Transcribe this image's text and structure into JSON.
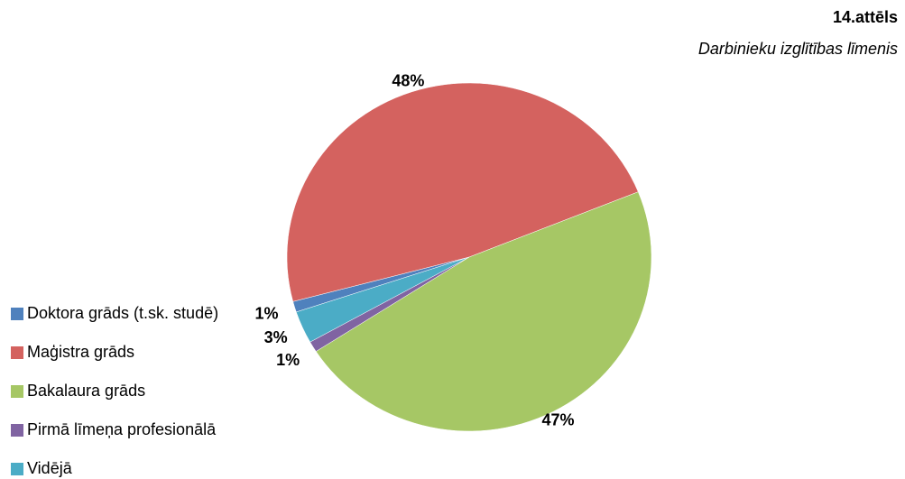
{
  "chart_data": {
    "type": "pie",
    "title": "14.attēls",
    "subtitle": "Darbinieku izglītības līmenis",
    "categories": [
      "Doktora grāds (t.sk. studē)",
      "Maģistra grāds",
      "Bakalaura grāds",
      "Pirmā līmeņa profesionālā",
      "Vidējā"
    ],
    "values": [
      1,
      48,
      47,
      1,
      3
    ],
    "value_labels": [
      "1%",
      "48%",
      "47%",
      "1%",
      "3%"
    ],
    "colors": [
      "#4f81bd",
      "#d4625f",
      "#a6c765",
      "#8064a2",
      "#4bacc6"
    ],
    "legend": "left"
  }
}
